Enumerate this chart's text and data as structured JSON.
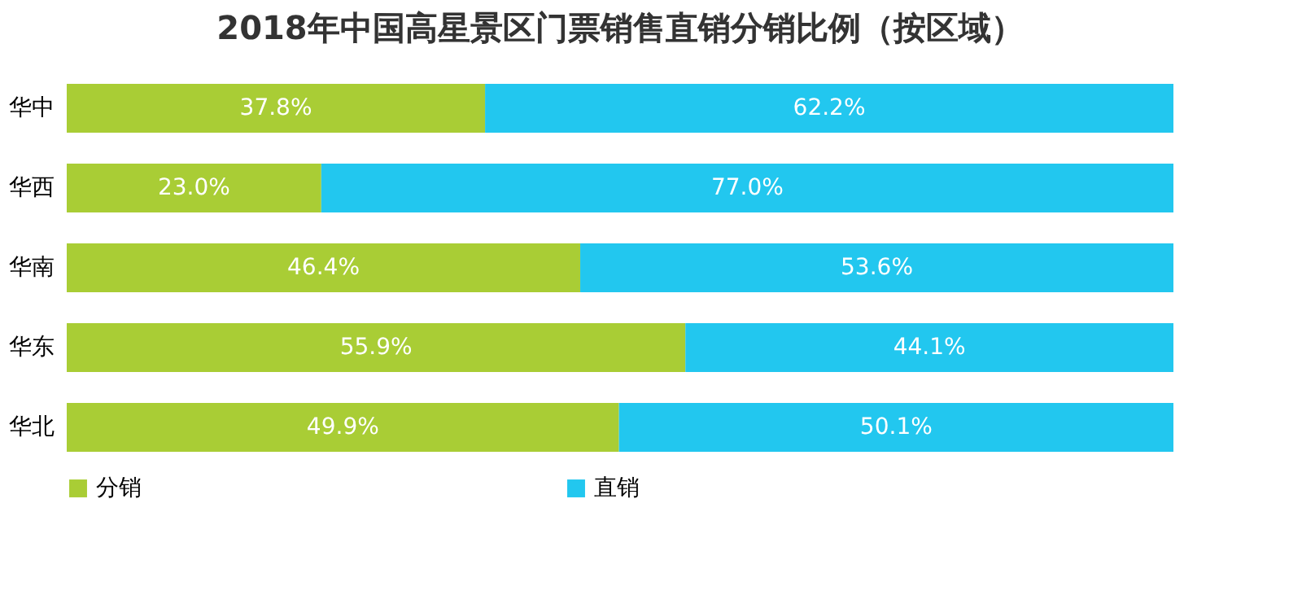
{
  "chart_data": {
    "type": "bar",
    "orientation": "horizontal",
    "stacked": true,
    "title": "2018年中国高星景区门票销售直销分销比例（按区域）",
    "categories": [
      "华中",
      "华西",
      "华南",
      "华东",
      "华北"
    ],
    "series": [
      {
        "name": "分销",
        "color": "#a9cd35",
        "values": [
          37.8,
          23.0,
          46.4,
          55.9,
          49.9
        ],
        "value_labels": [
          "37.8%",
          "23.0%",
          "46.4%",
          "55.9%",
          "49.9%"
        ]
      },
      {
        "name": "直销",
        "color": "#22c7ef",
        "values": [
          62.2,
          77.0,
          53.6,
          44.1,
          50.1
        ],
        "value_labels": [
          "62.2%",
          "77.0%",
          "53.6%",
          "44.1%",
          "50.1%"
        ]
      }
    ],
    "xlim": [
      0,
      100
    ],
    "tick_labels": "y",
    "grid": false,
    "legend": "bottom"
  }
}
